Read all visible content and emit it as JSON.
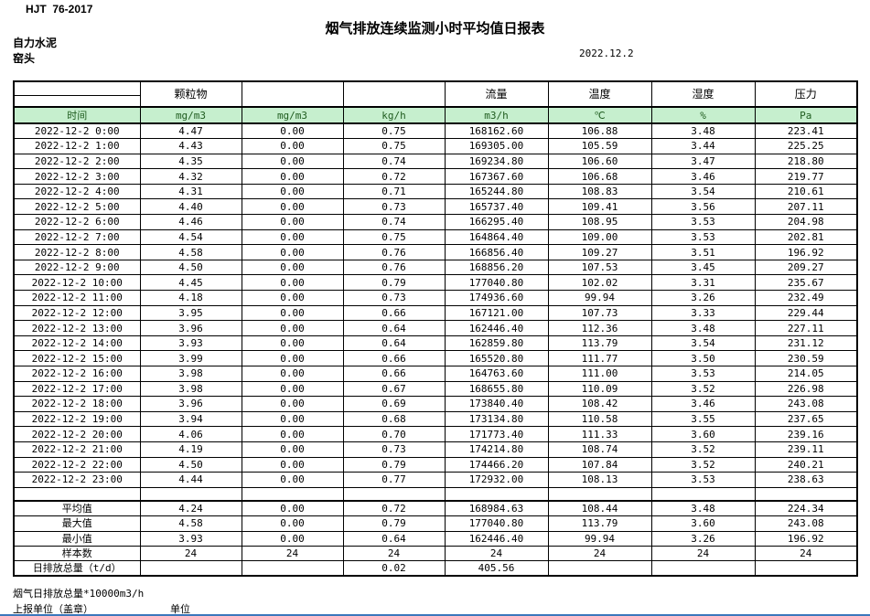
{
  "page": {
    "standard": "HJT  76-2017",
    "title": "烟气排放连续监测小时平均值日报表",
    "company": "自力水泥",
    "station": "窑头",
    "date": "2022.12.2"
  },
  "table": {
    "group_headers": [
      "",
      "颗粒物",
      "",
      "",
      "流量",
      "温度",
      "湿度",
      "压力"
    ],
    "units": [
      "时间",
      "mg/m3",
      "mg/m3",
      "kg/h",
      "m3/h",
      "℃",
      "%",
      "Pa"
    ],
    "rows": [
      [
        "2022-12-2 0:00",
        "4.47",
        "0.00",
        "0.75",
        "168162.60",
        "106.88",
        "3.48",
        "223.41"
      ],
      [
        "2022-12-2 1:00",
        "4.43",
        "0.00",
        "0.75",
        "169305.00",
        "105.59",
        "3.44",
        "225.25"
      ],
      [
        "2022-12-2 2:00",
        "4.35",
        "0.00",
        "0.74",
        "169234.80",
        "106.60",
        "3.47",
        "218.80"
      ],
      [
        "2022-12-2 3:00",
        "4.32",
        "0.00",
        "0.72",
        "167367.60",
        "106.68",
        "3.46",
        "219.77"
      ],
      [
        "2022-12-2 4:00",
        "4.31",
        "0.00",
        "0.71",
        "165244.80",
        "108.83",
        "3.54",
        "210.61"
      ],
      [
        "2022-12-2 5:00",
        "4.40",
        "0.00",
        "0.73",
        "165737.40",
        "109.41",
        "3.56",
        "207.11"
      ],
      [
        "2022-12-2 6:00",
        "4.46",
        "0.00",
        "0.74",
        "166295.40",
        "108.95",
        "3.53",
        "204.98"
      ],
      [
        "2022-12-2 7:00",
        "4.54",
        "0.00",
        "0.75",
        "164864.40",
        "109.00",
        "3.53",
        "202.81"
      ],
      [
        "2022-12-2 8:00",
        "4.58",
        "0.00",
        "0.76",
        "166856.40",
        "109.27",
        "3.51",
        "196.92"
      ],
      [
        "2022-12-2 9:00",
        "4.50",
        "0.00",
        "0.76",
        "168856.20",
        "107.53",
        "3.45",
        "209.27"
      ],
      [
        "2022-12-2 10:00",
        "4.45",
        "0.00",
        "0.79",
        "177040.80",
        "102.02",
        "3.31",
        "235.67"
      ],
      [
        "2022-12-2 11:00",
        "4.18",
        "0.00",
        "0.73",
        "174936.60",
        "99.94",
        "3.26",
        "232.49"
      ],
      [
        "2022-12-2 12:00",
        "3.95",
        "0.00",
        "0.66",
        "167121.00",
        "107.73",
        "3.33",
        "229.44"
      ],
      [
        "2022-12-2 13:00",
        "3.96",
        "0.00",
        "0.64",
        "162446.40",
        "112.36",
        "3.48",
        "227.11"
      ],
      [
        "2022-12-2 14:00",
        "3.93",
        "0.00",
        "0.64",
        "162859.80",
        "113.79",
        "3.54",
        "231.12"
      ],
      [
        "2022-12-2 15:00",
        "3.99",
        "0.00",
        "0.66",
        "165520.80",
        "111.77",
        "3.50",
        "230.59"
      ],
      [
        "2022-12-2 16:00",
        "3.98",
        "0.00",
        "0.66",
        "164763.60",
        "111.00",
        "3.53",
        "214.05"
      ],
      [
        "2022-12-2 17:00",
        "3.98",
        "0.00",
        "0.67",
        "168655.80",
        "110.09",
        "3.52",
        "226.98"
      ],
      [
        "2022-12-2 18:00",
        "3.96",
        "0.00",
        "0.69",
        "173840.40",
        "108.42",
        "3.46",
        "243.08"
      ],
      [
        "2022-12-2 19:00",
        "3.94",
        "0.00",
        "0.68",
        "173134.80",
        "110.58",
        "3.55",
        "237.65"
      ],
      [
        "2022-12-2 20:00",
        "4.06",
        "0.00",
        "0.70",
        "171773.40",
        "111.33",
        "3.60",
        "239.16"
      ],
      [
        "2022-12-2 21:00",
        "4.19",
        "0.00",
        "0.73",
        "174214.80",
        "108.74",
        "3.52",
        "239.11"
      ],
      [
        "2022-12-2 22:00",
        "4.50",
        "0.00",
        "0.79",
        "174466.20",
        "107.84",
        "3.52",
        "240.21"
      ],
      [
        "2022-12-2 23:00",
        "4.44",
        "0.00",
        "0.77",
        "172932.00",
        "108.13",
        "3.53",
        "238.63"
      ]
    ],
    "summary_rows": [
      [
        "平均值",
        "4.24",
        "0.00",
        "0.72",
        "168984.63",
        "108.44",
        "3.48",
        "224.34"
      ],
      [
        "最大值",
        "4.58",
        "0.00",
        "0.79",
        "177040.80",
        "113.79",
        "3.60",
        "243.08"
      ],
      [
        "最小值",
        "3.93",
        "0.00",
        "0.64",
        "162446.40",
        "99.94",
        "3.26",
        "196.92"
      ],
      [
        "样本数",
        "24",
        "24",
        "24",
        "24",
        "24",
        "24",
        "24"
      ],
      [
        "日排放总量（t/d）",
        "",
        "",
        "0.02",
        "405.56",
        "",
        "",
        ""
      ]
    ]
  },
  "footer": {
    "note_flow_total": "烟气日排放总量*10000m3/h",
    "report_unit_label": "上报单位（盖章）",
    "unit_label": "单位"
  },
  "colors": {
    "header_green": "#c6efce",
    "border": "#000000",
    "bottom_edge_blue": "#3b77bc"
  }
}
